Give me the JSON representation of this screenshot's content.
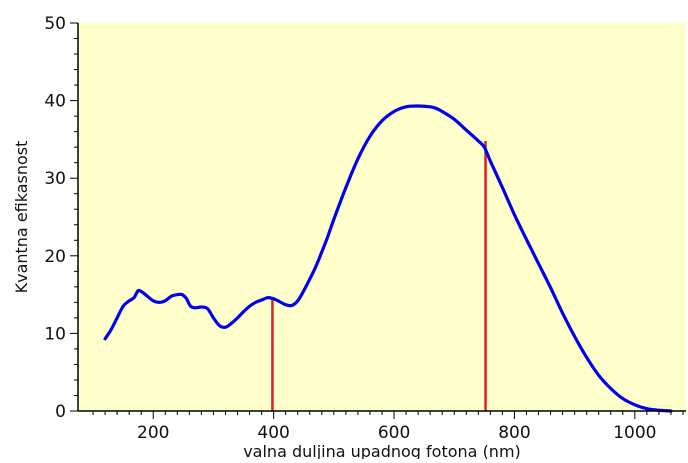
{
  "chart_data": {
    "type": "line",
    "title": "",
    "xlabel": "valna duljina upadnog fotona (nm)",
    "ylabel": "Kvantna efikasnost",
    "xlim": [
      75,
      1085
    ],
    "ylim": [
      0,
      50
    ],
    "x_ticks": [
      200,
      400,
      600,
      800,
      1000
    ],
    "y_ticks": [
      0,
      10,
      20,
      30,
      40,
      50
    ],
    "grid": false,
    "legend": "none",
    "colors": {
      "background": "#ffffcc",
      "series": "#0000ee",
      "markers": "#e02020"
    },
    "series": [
      {
        "x": [
          120,
          130,
          140,
          150,
          160,
          168,
          175,
          182,
          190,
          200,
          210,
          220,
          230,
          240,
          248,
          255,
          262,
          270,
          280,
          290,
          300,
          310,
          320,
          330,
          340,
          350,
          360,
          370,
          380,
          390,
          398,
          405,
          412,
          420,
          430,
          440,
          450,
          460,
          470,
          480,
          490,
          500,
          520,
          540,
          560,
          580,
          600,
          620,
          640,
          660,
          670,
          680,
          700,
          720,
          740,
          750,
          760,
          780,
          800,
          820,
          840,
          860,
          880,
          900,
          920,
          940,
          960,
          980,
          1000,
          1020,
          1040,
          1060
        ],
        "y": [
          9.3,
          10.5,
          12.0,
          13.5,
          14.2,
          14.6,
          15.5,
          15.3,
          14.8,
          14.2,
          14.0,
          14.2,
          14.8,
          15.0,
          15.0,
          14.5,
          13.5,
          13.3,
          13.4,
          13.2,
          12.0,
          11.0,
          10.8,
          11.3,
          12.0,
          12.8,
          13.5,
          14.0,
          14.3,
          14.6,
          14.5,
          14.3,
          14.0,
          13.7,
          13.6,
          14.2,
          15.5,
          17.0,
          18.6,
          20.5,
          22.5,
          24.7,
          28.8,
          32.5,
          35.4,
          37.4,
          38.6,
          39.2,
          39.3,
          39.2,
          39.0,
          38.6,
          37.6,
          36.2,
          34.8,
          34.0,
          32.2,
          28.8,
          25.3,
          22.1,
          19.0,
          15.9,
          12.6,
          9.6,
          6.9,
          4.6,
          2.9,
          1.6,
          0.8,
          0.3,
          0.1,
          0.0
        ]
      }
    ],
    "annotations": [
      {
        "type": "vertical-line",
        "x": 398,
        "y_from": 0,
        "y_to": 14.5
      },
      {
        "type": "vertical-line",
        "x": 752,
        "y_from": 0,
        "y_to": 34.8
      }
    ]
  }
}
